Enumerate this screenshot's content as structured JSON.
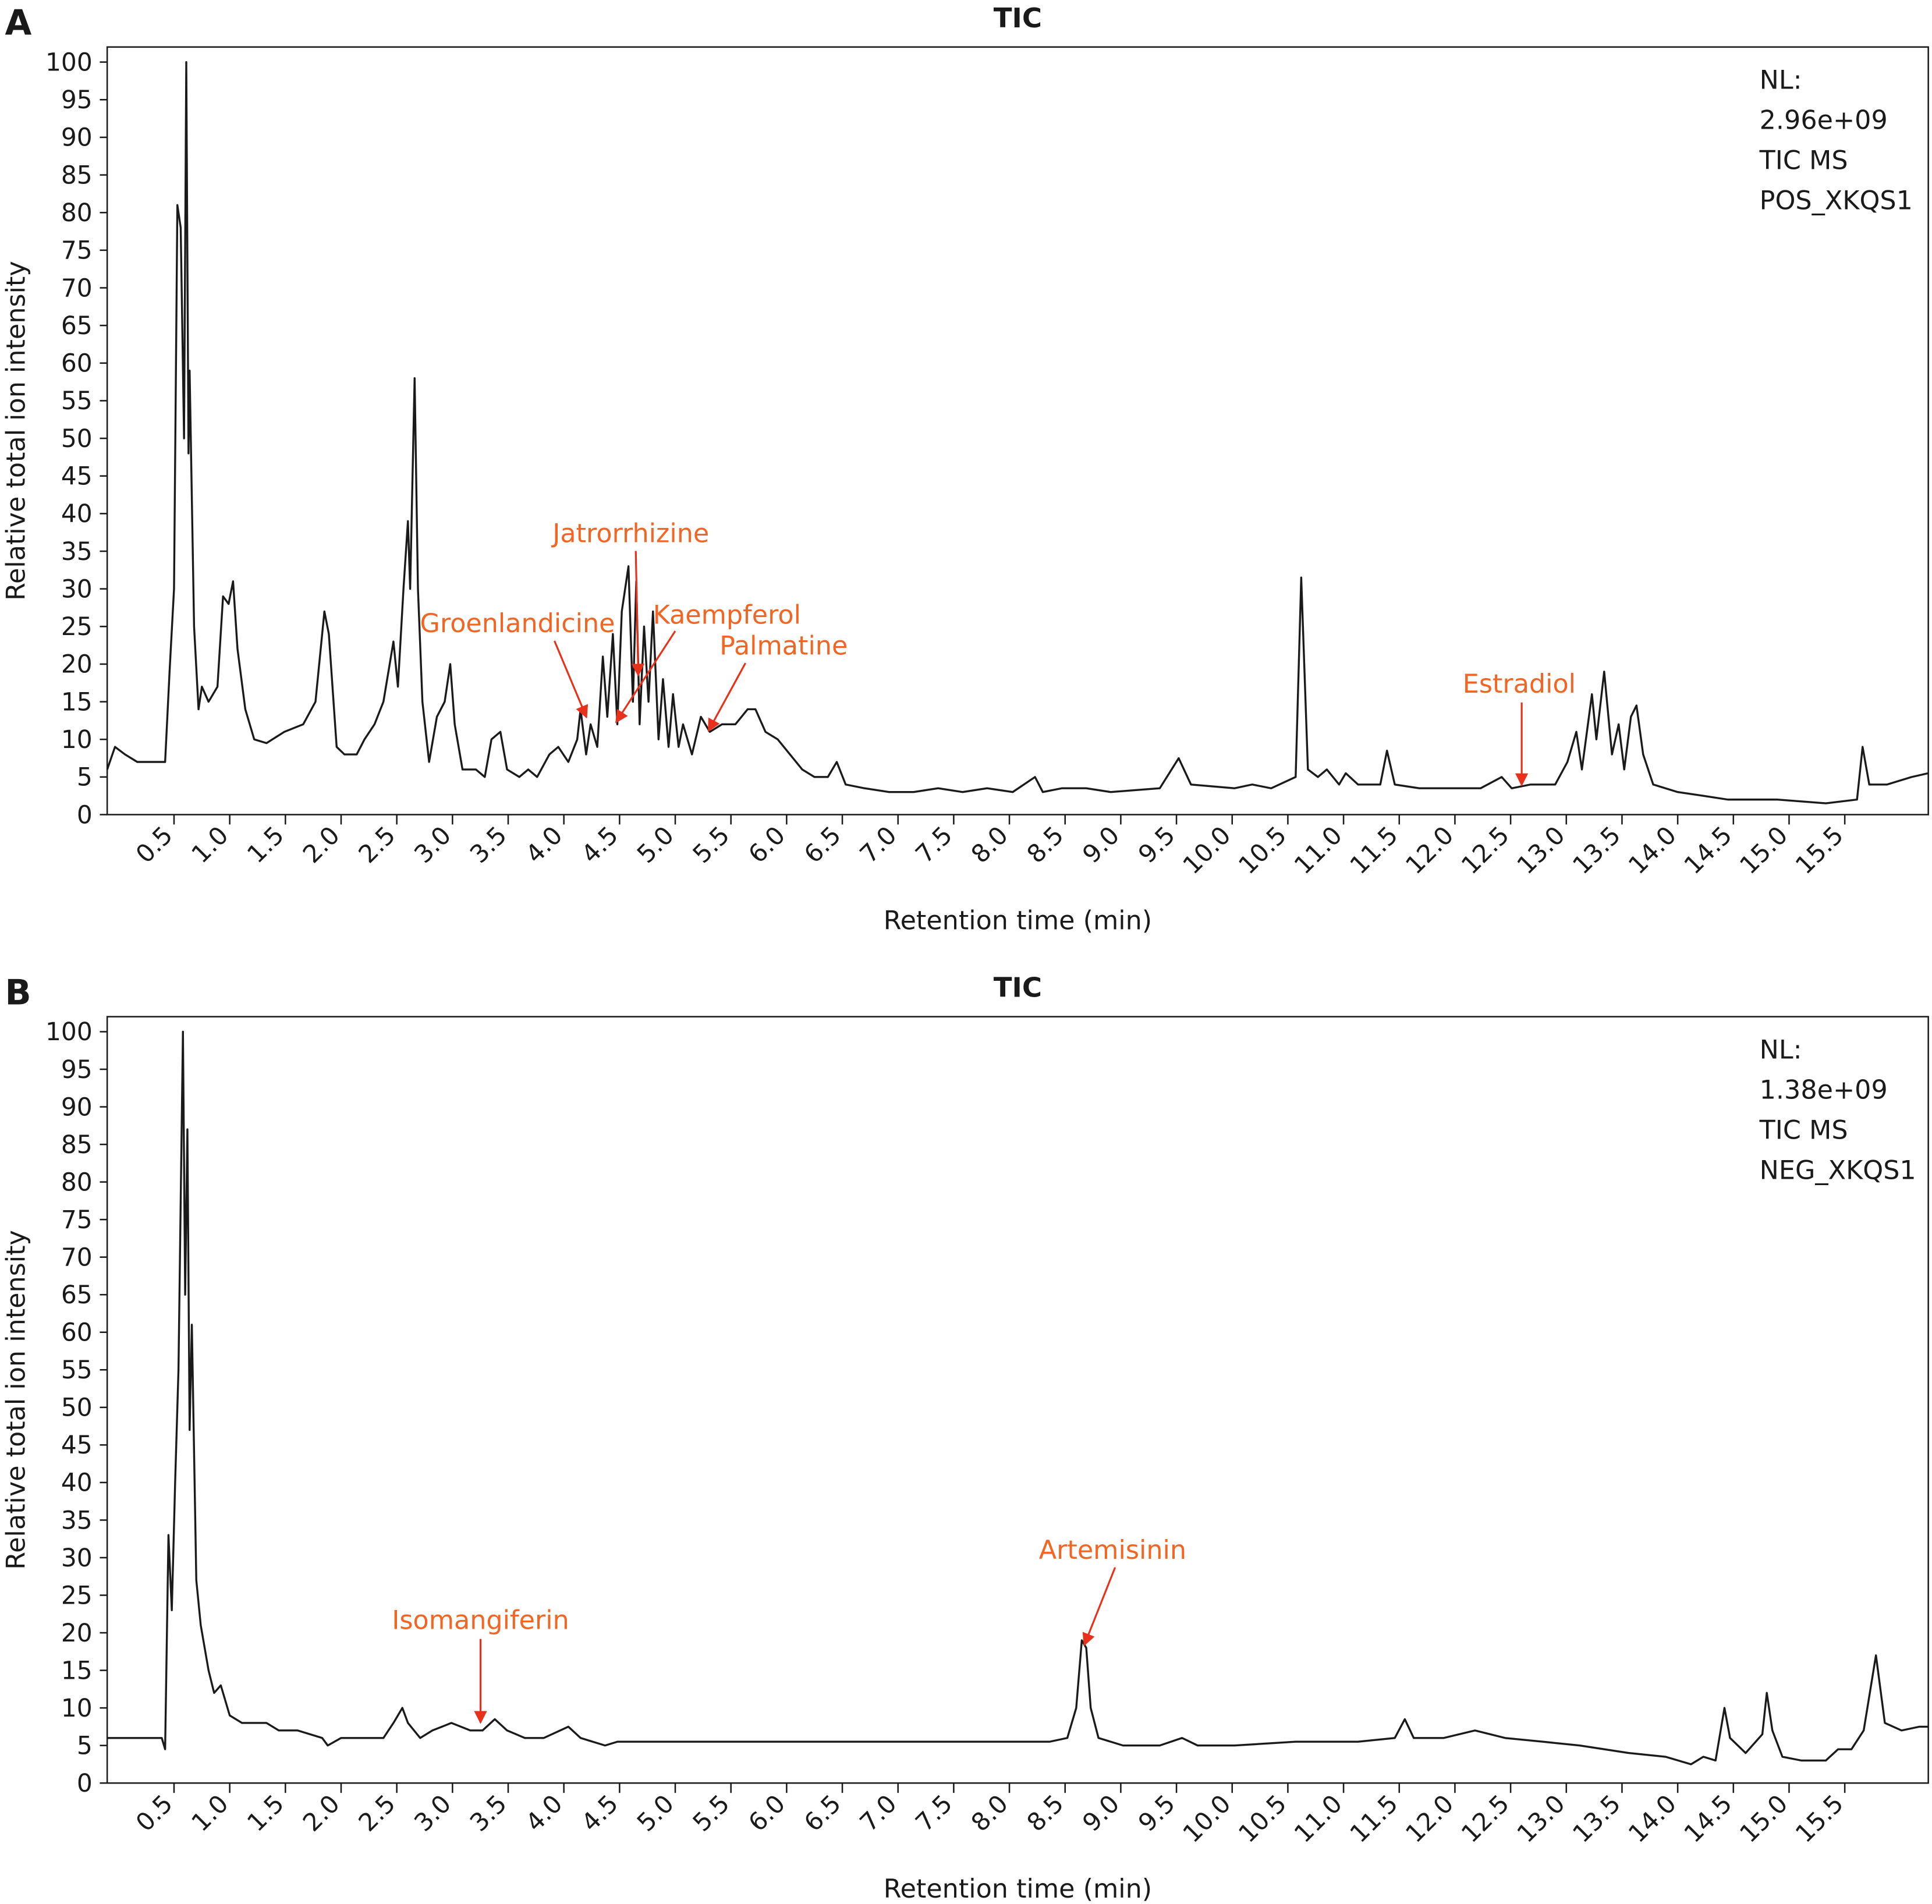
{
  "chart_data": [
    {
      "type": "line",
      "panel_label": "A",
      "title": "TIC",
      "x_label": "Retention time (min)",
      "y_label": "Relative total ion intensity",
      "info": [
        "NL:",
        "2.96e+09",
        "TIC MS",
        "POS_XKQS1"
      ],
      "annotations": [
        "Groenlandicine",
        "Jatrorrhizine",
        "Kaempferol",
        "Palmatine",
        "Estradiol"
      ],
      "color": "#1a1a1a",
      "grid": false,
      "xlim": [
        -0.1,
        16.25
      ],
      "ylim": [
        0,
        102
      ],
      "xticks": [
        0.5,
        {
          "value": 1,
          "label": "1.0"
        },
        1.5,
        {
          "value": 2,
          "label": "2.0"
        },
        2.5,
        {
          "value": 3,
          "label": "3.0"
        },
        3.5,
        {
          "value": 4,
          "label": "4.0"
        },
        4.5,
        {
          "value": 5,
          "label": "5.0"
        },
        5.5,
        {
          "value": 6,
          "label": "6.0"
        },
        6.5,
        {
          "value": 7,
          "label": "7.0"
        },
        7.5,
        {
          "value": 8,
          "label": "8.0"
        },
        8.5,
        {
          "value": 9,
          "label": "9.0"
        },
        9.5,
        {
          "value": 10,
          "label": "10.0"
        },
        10.5,
        {
          "value": 11,
          "label": "11.0"
        },
        11.5,
        {
          "value": 12,
          "label": "12.0"
        },
        12.5,
        {
          "value": 13,
          "label": "13.0"
        },
        13.5,
        {
          "value": 14,
          "label": "14.0"
        },
        14.5,
        {
          "value": 15,
          "label": "15.0"
        },
        15.5
      ],
      "yticks": [
        0,
        5,
        10,
        15,
        20,
        25,
        30,
        35,
        40,
        45,
        50,
        55,
        60,
        65,
        70,
        75,
        80,
        85,
        90,
        95,
        100
      ],
      "x": [
        -0.1,
        -0.03,
        0.06,
        0.17,
        0.28,
        0.42,
        0.46,
        0.5,
        0.53,
        0.56,
        0.59,
        0.61,
        0.63,
        0.64,
        0.68,
        0.72,
        0.75,
        0.81,
        0.89,
        0.94,
        0.99,
        1.03,
        1.07,
        1.14,
        1.22,
        1.33,
        1.49,
        1.66,
        1.77,
        1.85,
        1.89,
        1.96,
        2.03,
        2.14,
        2.21,
        2.3,
        2.38,
        2.47,
        2.51,
        2.56,
        2.6,
        2.62,
        2.66,
        2.69,
        2.73,
        2.79,
        2.86,
        2.93,
        2.98,
        3.02,
        3.09,
        3.21,
        3.29,
        3.35,
        3.43,
        3.49,
        3.6,
        3.68,
        3.76,
        3.87,
        3.95,
        4.04,
        4.12,
        4.15,
        4.2,
        4.24,
        4.3,
        4.35,
        4.39,
        4.44,
        4.48,
        4.52,
        4.55,
        4.58,
        4.62,
        4.65,
        4.68,
        4.72,
        4.76,
        4.8,
        4.85,
        4.89,
        4.94,
        4.98,
        5.03,
        5.07,
        5.15,
        5.23,
        5.31,
        5.42,
        5.54,
        5.65,
        5.72,
        5.81,
        5.92,
        6.03,
        6.14,
        6.25,
        6.37,
        6.45,
        6.53,
        6.7,
        6.92,
        7.14,
        7.36,
        7.58,
        7.8,
        8.03,
        8.23,
        8.3,
        8.47,
        8.69,
        8.91,
        9.35,
        9.52,
        9.63,
        10.02,
        10.18,
        10.35,
        10.57,
        10.62,
        10.68,
        10.77,
        10.85,
        10.96,
        11.02,
        11.13,
        11.33,
        11.39,
        11.46,
        11.68,
        12.01,
        12.23,
        12.42,
        12.51,
        12.68,
        12.9,
        13.01,
        13.09,
        13.14,
        13.23,
        13.27,
        13.34,
        13.41,
        13.47,
        13.52,
        13.58,
        13.63,
        13.69,
        13.78,
        14.0,
        14.23,
        14.45,
        14.89,
        15.33,
        15.61,
        15.66,
        15.72,
        15.88,
        16.1,
        16.25
      ],
      "values": [
        6,
        9,
        8,
        7,
        7,
        7,
        19,
        30,
        81,
        78,
        50,
        100,
        48,
        59,
        25,
        14,
        17,
        15,
        17,
        29,
        28,
        31,
        22,
        14,
        10,
        9.5,
        11,
        12,
        15,
        27,
        24,
        9,
        8,
        8,
        10,
        12,
        15,
        23,
        17,
        30,
        39,
        30,
        58,
        30,
        15,
        7,
        13,
        15,
        20,
        12,
        6,
        6,
        5,
        10,
        11,
        6,
        5,
        6,
        5,
        8,
        9,
        7,
        10,
        14,
        8,
        12,
        9,
        21,
        13,
        24,
        12,
        27,
        30,
        33,
        15,
        31,
        12,
        25,
        15,
        27,
        10,
        18,
        9,
        16,
        9,
        12,
        8,
        13,
        11,
        12,
        12,
        14,
        14,
        11,
        10,
        8,
        6,
        5,
        5,
        7,
        4,
        3.5,
        3,
        3,
        3.5,
        3,
        3.5,
        3,
        5,
        3,
        3.5,
        3.5,
        3,
        3.5,
        7.5,
        4,
        3.5,
        4,
        3.5,
        5,
        31.5,
        6,
        5,
        6,
        4,
        5.5,
        4,
        4,
        8.5,
        4,
        3.5,
        3.5,
        3.5,
        5,
        3.5,
        4,
        4,
        7,
        11,
        6,
        16,
        10,
        19,
        8,
        12,
        6,
        13,
        14.5,
        8,
        4,
        3,
        2.5,
        2,
        2,
        1.5,
        2,
        9,
        4,
        4,
        5,
        5.5
      ]
    },
    {
      "type": "line",
      "panel_label": "B",
      "title": "TIC",
      "x_label": "Retention time (min)",
      "y_label": "Relative total ion intensity",
      "info": [
        "NL:",
        "1.38e+09",
        "TIC MS",
        "NEG_XKQS1"
      ],
      "annotations": [
        "Isomangiferin",
        "Artemisinin"
      ],
      "color": "#1a1a1a",
      "grid": false,
      "xlim": [
        -0.1,
        16.25
      ],
      "ylim": [
        0,
        102
      ],
      "xticks": [
        0.5,
        {
          "value": 1,
          "label": "1.0"
        },
        1.5,
        {
          "value": 2,
          "label": "2.0"
        },
        2.5,
        {
          "value": 3,
          "label": "3.0"
        },
        3.5,
        {
          "value": 4,
          "label": "4.0"
        },
        4.5,
        {
          "value": 5,
          "label": "5.0"
        },
        5.5,
        {
          "value": 6,
          "label": "6.0"
        },
        6.5,
        {
          "value": 7,
          "label": "7.0"
        },
        7.5,
        {
          "value": 8,
          "label": "8.0"
        },
        8.5,
        {
          "value": 9,
          "label": "9.0"
        },
        9.5,
        {
          "value": 10,
          "label": "10.0"
        },
        10.5,
        {
          "value": 11,
          "label": "11.0"
        },
        11.5,
        {
          "value": 12,
          "label": "12.0"
        },
        12.5,
        {
          "value": 13,
          "label": "13.0"
        },
        13.5,
        {
          "value": 14,
          "label": "14.0"
        },
        14.5,
        {
          "value": 15,
          "label": "15.0"
        },
        15.5
      ],
      "yticks": [
        0,
        5,
        10,
        15,
        20,
        25,
        30,
        35,
        40,
        45,
        50,
        55,
        60,
        65,
        70,
        75,
        80,
        85,
        90,
        95,
        100
      ],
      "x": [
        -0.1,
        0.06,
        0.28,
        0.39,
        0.42,
        0.45,
        0.48,
        0.51,
        0.54,
        0.58,
        0.6,
        0.62,
        0.64,
        0.66,
        0.7,
        0.74,
        0.81,
        0.86,
        0.92,
        1.0,
        1.11,
        1.33,
        1.44,
        1.61,
        1.83,
        1.88,
        2.0,
        2.27,
        2.38,
        2.47,
        2.55,
        2.6,
        2.71,
        2.82,
        2.99,
        3.16,
        3.27,
        3.38,
        3.49,
        3.65,
        3.82,
        4.04,
        4.15,
        4.26,
        4.37,
        4.48,
        4.7,
        5.15,
        5.59,
        6.14,
        6.7,
        7.25,
        7.8,
        8.36,
        8.52,
        8.6,
        8.65,
        8.69,
        8.73,
        8.8,
        9.02,
        9.35,
        9.55,
        9.69,
        10.02,
        10.57,
        11.13,
        11.46,
        11.55,
        11.63,
        11.9,
        12.18,
        12.45,
        12.79,
        13.12,
        13.56,
        13.89,
        14.12,
        14.23,
        14.34,
        14.42,
        14.47,
        14.61,
        14.76,
        14.8,
        14.85,
        14.94,
        15.11,
        15.33,
        15.44,
        15.56,
        15.67,
        15.78,
        15.86,
        16.01,
        16.17,
        16.25
      ],
      "values": [
        6,
        6,
        6,
        6,
        4.5,
        33,
        23,
        40,
        55,
        100,
        65,
        87,
        47,
        61,
        27,
        21,
        15,
        12,
        13,
        9,
        8,
        8,
        7,
        7,
        6,
        5,
        6,
        6,
        6,
        8,
        10,
        8,
        6,
        7,
        8,
        7,
        7,
        8.5,
        7,
        6,
        6,
        7.5,
        6,
        5.5,
        5,
        5.5,
        5.5,
        5.5,
        5.5,
        5.5,
        5.5,
        5.5,
        5.5,
        5.5,
        6,
        10,
        19,
        18,
        10,
        6,
        5,
        5,
        6,
        5,
        5,
        5.5,
        5.5,
        6,
        8.5,
        6,
        6,
        7,
        6,
        5.5,
        5,
        4,
        3.5,
        2.5,
        3.5,
        3,
        10,
        6,
        4,
        6.5,
        12,
        7,
        3.5,
        3,
        3,
        4.5,
        4.5,
        7,
        17,
        8,
        7,
        7.5,
        7.5
      ]
    }
  ]
}
